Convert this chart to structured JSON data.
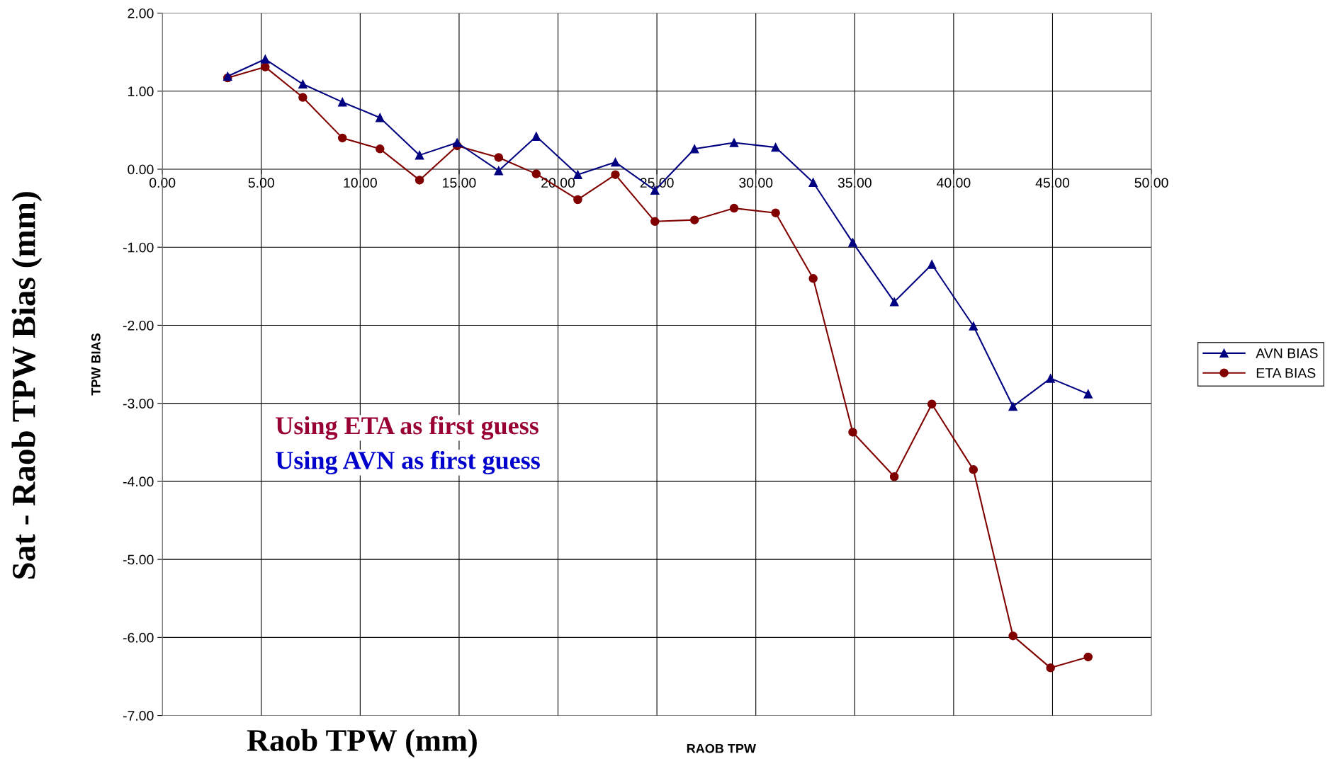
{
  "chart_data": {
    "type": "line",
    "xlabel": "RAOB TPW",
    "ylabel": "TPW BIAS",
    "x": [
      3.3,
      5.2,
      7.1,
      9.1,
      11.0,
      13.0,
      14.9,
      17.0,
      18.9,
      21.0,
      22.9,
      24.9,
      26.9,
      28.9,
      31.0,
      32.9,
      34.9,
      37.0,
      38.9,
      41.0,
      43.0,
      44.9,
      46.8
    ],
    "series": [
      {
        "name": "AVN BIAS",
        "color": "#000080",
        "marker": "triangle",
        "values": [
          1.19,
          1.41,
          1.09,
          0.86,
          0.66,
          0.18,
          0.34,
          -0.02,
          0.42,
          -0.07,
          0.09,
          -0.27,
          0.26,
          0.34,
          0.28,
          -0.17,
          -0.94,
          -1.7,
          -1.22,
          -2.01,
          -3.04,
          -2.68,
          -2.88
        ]
      },
      {
        "name": "ETA BIAS",
        "color": "#800000",
        "marker": "circle",
        "values": [
          1.17,
          1.31,
          0.92,
          0.4,
          0.26,
          -0.14,
          0.3,
          0.15,
          -0.06,
          -0.39,
          -0.07,
          -0.67,
          -0.65,
          -0.5,
          -0.56,
          -1.4,
          -3.37,
          -3.94,
          -3.01,
          -3.85,
          -5.98,
          -6.39,
          -6.25
        ]
      }
    ],
    "xlim": [
      0,
      50
    ],
    "xticks": [
      {
        "value": 0,
        "label": "0.00"
      },
      {
        "value": 5,
        "label": "5.00"
      },
      {
        "value": 10,
        "label": "10.00"
      },
      {
        "value": 15,
        "label": "15.00"
      },
      {
        "value": 20,
        "label": "20.00"
      },
      {
        "value": 25,
        "label": "25.00"
      },
      {
        "value": 30,
        "label": "30.00"
      },
      {
        "value": 35,
        "label": "35.00"
      },
      {
        "value": 40,
        "label": "40.00"
      },
      {
        "value": 45,
        "label": "45.00"
      },
      {
        "value": 50,
        "label": "50.00"
      }
    ],
    "ylim": [
      -7,
      2
    ],
    "yticks": [
      {
        "value": -7,
        "label": "-7.00"
      },
      {
        "value": -6,
        "label": "-6.00"
      },
      {
        "value": -5,
        "label": "-5.00"
      },
      {
        "value": -4,
        "label": "-4.00"
      },
      {
        "value": -3,
        "label": "-3.00"
      },
      {
        "value": -2,
        "label": "-2.00"
      },
      {
        "value": -1,
        "label": "-1.00"
      },
      {
        "value": 0,
        "label": "0.00"
      },
      {
        "value": 1,
        "label": "1.00"
      },
      {
        "value": 2,
        "label": "2.00"
      }
    ],
    "grid": true,
    "legend": "right",
    "line_style": "solid",
    "annotations": [
      "Sat - Raob TPW Bias (mm)",
      "Raob TPW (mm)",
      "Using ETA as first guess",
      "Using AVN as first guess"
    ]
  }
}
